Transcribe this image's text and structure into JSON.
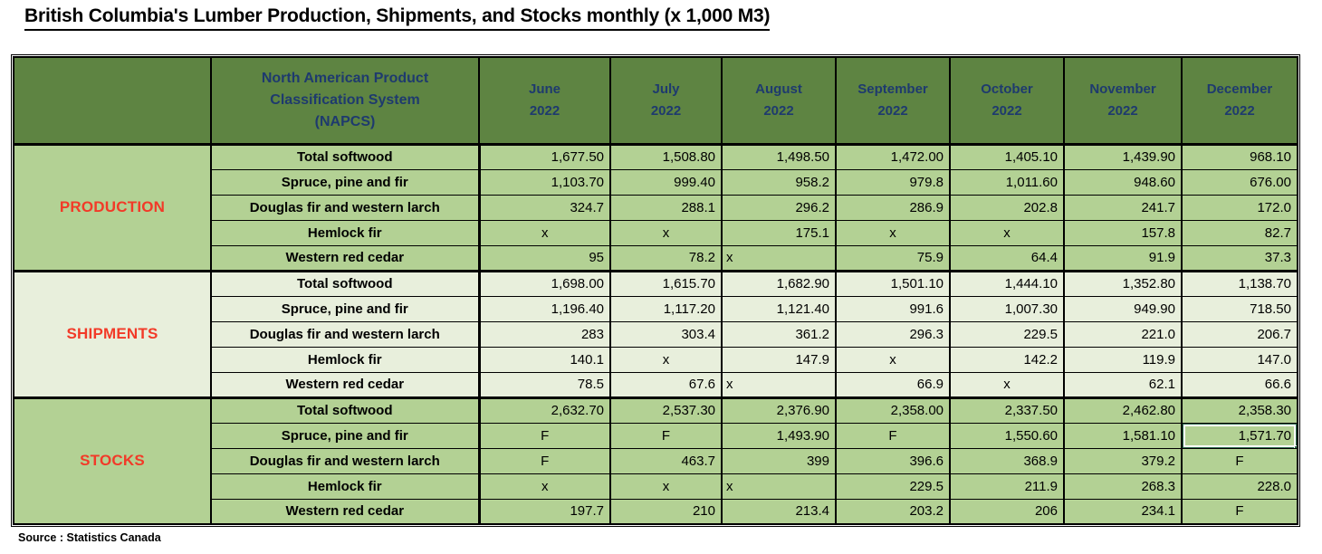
{
  "title": "British Columbia's Lumber Production, Shipments, and Stocks monthly (x 1,000 M3)",
  "source": "Source : Statistics Canada",
  "colors": {
    "header_bg": "#5e8442",
    "header_text": "#1e3a6e",
    "light_row_bg": "#b3d194",
    "pale_row_bg": "#e8efdc",
    "section_label_text": "#f23a28",
    "selection": "#2e6b4e",
    "border": "#000000"
  },
  "table": {
    "napcs_header": "North American Product Classification System (NAPCS)",
    "months": [
      {
        "name": "June",
        "year": "2022"
      },
      {
        "name": "July",
        "year": "2022"
      },
      {
        "name": "August",
        "year": "2022"
      },
      {
        "name": "September",
        "year": "2022"
      },
      {
        "name": "October",
        "year": "2022"
      },
      {
        "name": "November",
        "year": "2022"
      },
      {
        "name": "December",
        "year": "2022"
      }
    ],
    "sections": [
      {
        "label": "PRODUCTION",
        "shade": "light",
        "rows": [
          {
            "product": "Total softwood",
            "values": [
              "1,677.50",
              "1,508.80",
              "1,498.50",
              "1,472.00",
              "1,405.10",
              "1,439.90",
              "968.10"
            ]
          },
          {
            "product": "Spruce, pine and fir",
            "values": [
              "1,103.70",
              "999.40",
              "958.2",
              "979.8",
              "1,011.60",
              "948.60",
              "676.00"
            ]
          },
          {
            "product": "Douglas fir and western larch",
            "values": [
              "324.7",
              "288.1",
              "296.2",
              "286.9",
              "202.8",
              "241.7",
              "172.0"
            ]
          },
          {
            "product": "Hemlock fir",
            "values": [
              "x",
              "x",
              "175.1",
              "x",
              "x",
              "157.8",
              "82.7"
            ]
          },
          {
            "product": "Western red cedar",
            "values": [
              "95",
              "78.2",
              "x",
              "75.9",
              "64.4",
              "91.9",
              "37.3"
            ]
          }
        ]
      },
      {
        "label": "SHIPMENTS",
        "shade": "pale",
        "rows": [
          {
            "product": "Total softwood",
            "values": [
              "1,698.00",
              "1,615.70",
              "1,682.90",
              "1,501.10",
              "1,444.10",
              "1,352.80",
              "1,138.70"
            ]
          },
          {
            "product": "Spruce, pine and fir",
            "values": [
              "1,196.40",
              "1,117.20",
              "1,121.40",
              "991.6",
              "1,007.30",
              "949.90",
              "718.50"
            ]
          },
          {
            "product": "Douglas fir and western larch",
            "values": [
              "283",
              "303.4",
              "361.2",
              "296.3",
              "229.5",
              "221.0",
              "206.7"
            ]
          },
          {
            "product": "Hemlock fir",
            "values": [
              "140.1",
              "x",
              "147.9",
              "x",
              "142.2",
              "119.9",
              "147.0"
            ]
          },
          {
            "product": "Western red cedar",
            "values": [
              "78.5",
              "67.6",
              "x",
              "66.9",
              "x",
              "62.1",
              "66.6"
            ]
          }
        ]
      },
      {
        "label": "STOCKS",
        "shade": "light",
        "rows": [
          {
            "product": "Total softwood",
            "values": [
              "2,632.70",
              "2,537.30",
              "2,376.90",
              "2,358.00",
              "2,337.50",
              "2,462.80",
              "2,358.30"
            ]
          },
          {
            "product": "Spruce, pine and fir",
            "values": [
              "F",
              "F",
              "1,493.90",
              "F",
              "1,550.60",
              "1,581.10",
              "1,571.70"
            ]
          },
          {
            "product": "Douglas fir and western larch",
            "values": [
              "F",
              "463.7",
              "399",
              "396.6",
              "368.9",
              "379.2",
              "F"
            ]
          },
          {
            "product": "Hemlock fir",
            "values": [
              "x",
              "x",
              "x",
              "229.5",
              "211.9",
              "268.3",
              "228.0"
            ]
          },
          {
            "product": "Western red cedar",
            "values": [
              "197.7",
              "210",
              "213.4",
              "203.2",
              "206",
              "234.1",
              "F"
            ]
          }
        ]
      }
    ],
    "left_aligned_cells": [
      [
        0,
        4,
        2
      ],
      [
        1,
        4,
        2
      ],
      [
        2,
        3,
        2
      ]
    ],
    "selected_cell": [
      2,
      1,
      6
    ]
  }
}
